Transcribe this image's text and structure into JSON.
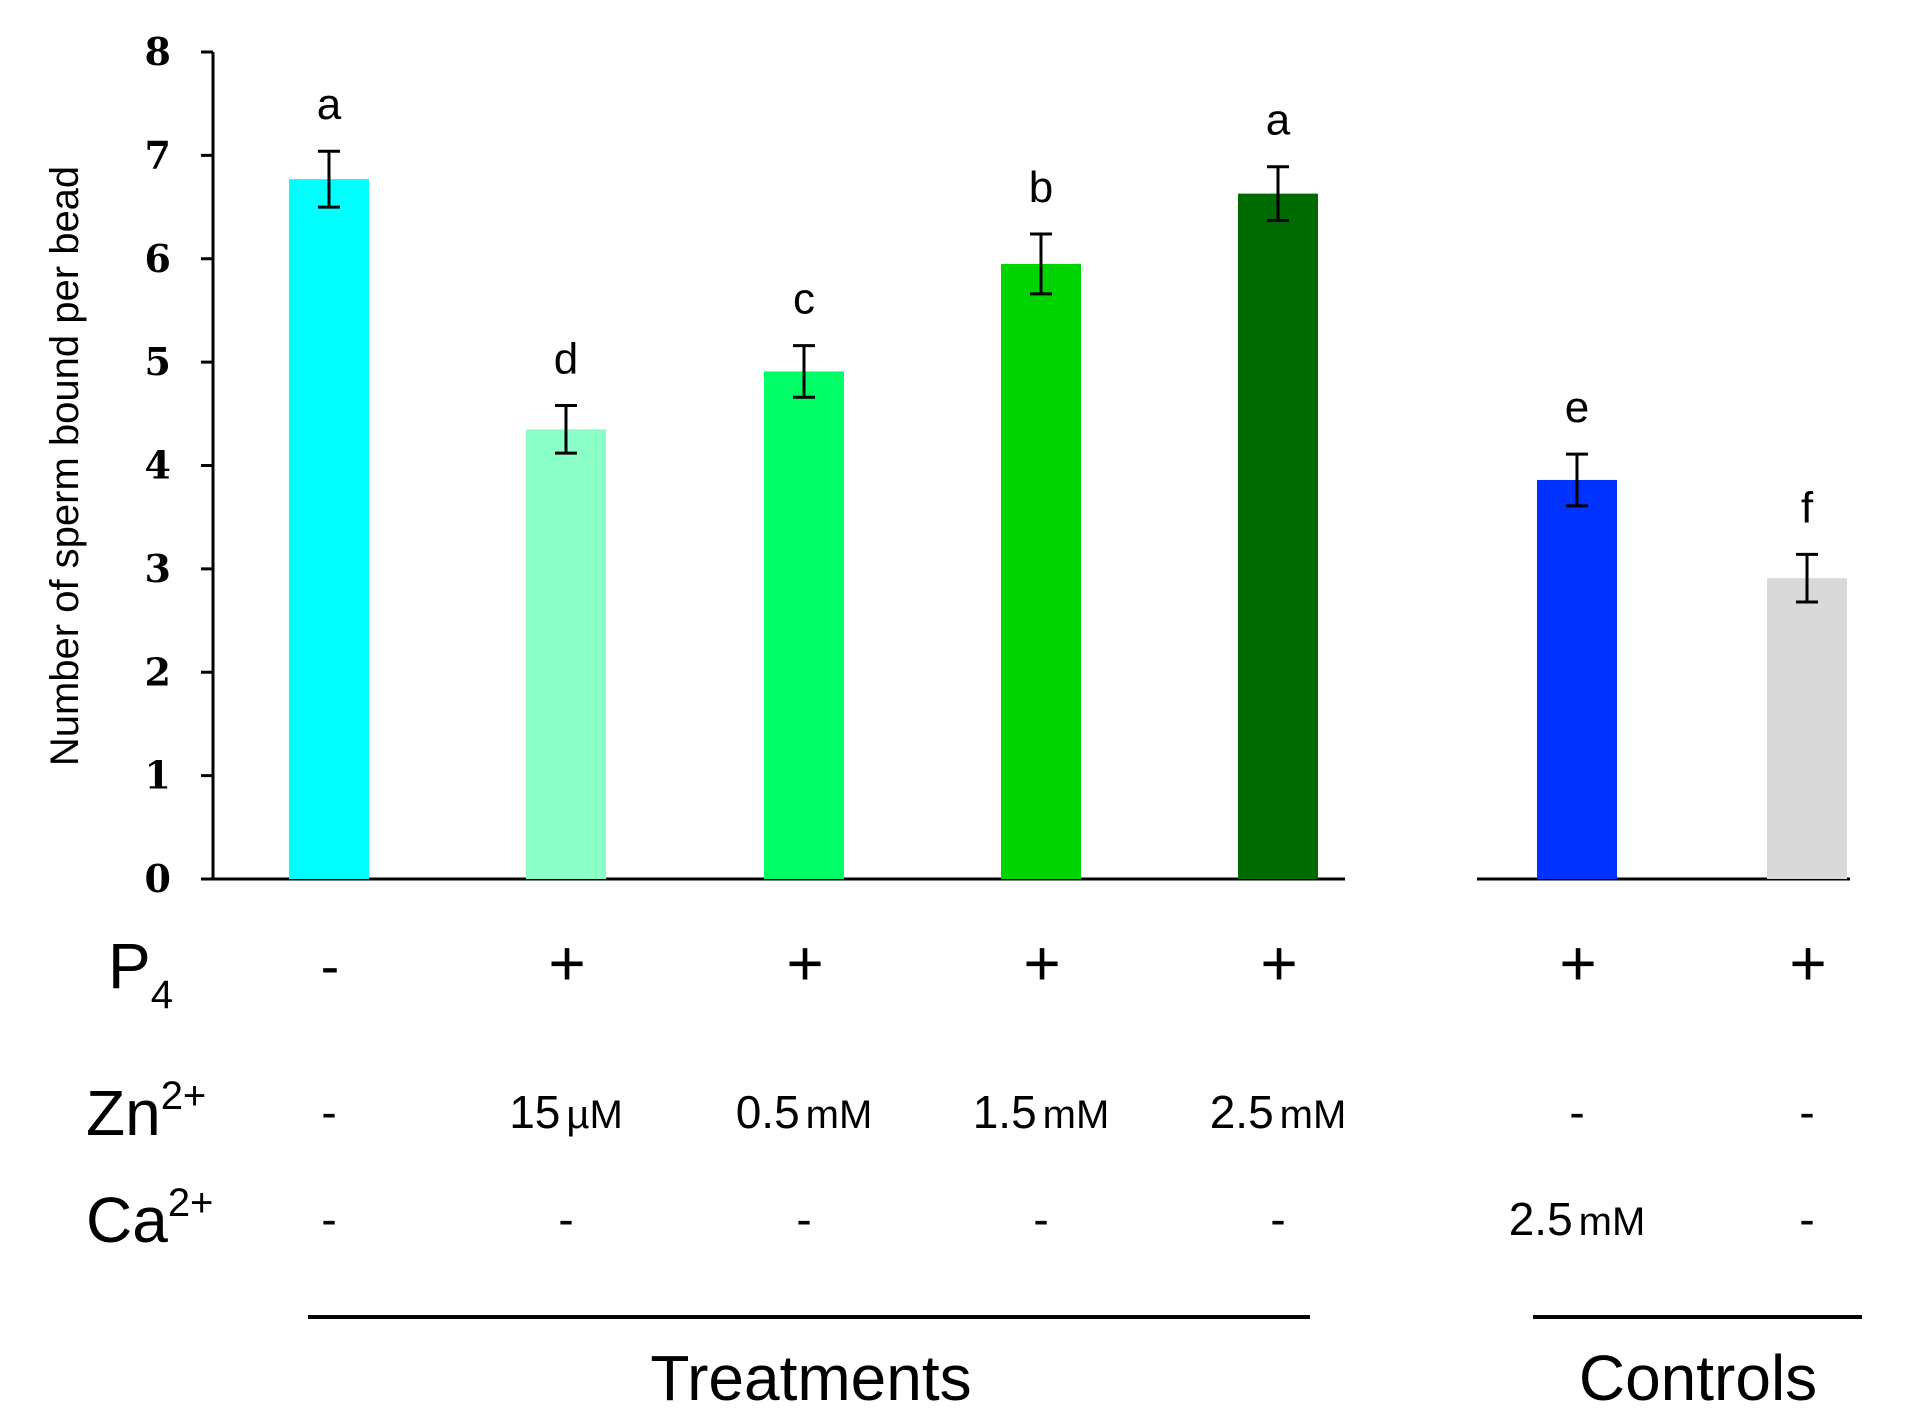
{
  "chart_data": {
    "type": "bar",
    "ylabel": "Number of sperm bound per bead",
    "ylim": [
      0,
      8
    ],
    "yticks": [
      "0",
      "1",
      "2",
      "3",
      "4",
      "5",
      "6",
      "7",
      "8"
    ],
    "bars": [
      {
        "value": 6.77,
        "error": 0.27,
        "letter": "a",
        "color": "#00ffff",
        "group": "treatments",
        "p4": "-",
        "zn_value": "-",
        "zn_unit": "",
        "ca_value": "-",
        "ca_unit": ""
      },
      {
        "value": 4.35,
        "error": 0.23,
        "letter": "d",
        "color": "#8affc7",
        "group": "treatments",
        "p4": "+",
        "zn_value": "15",
        "zn_unit": "µM",
        "ca_value": "-",
        "ca_unit": ""
      },
      {
        "value": 4.91,
        "error": 0.25,
        "letter": "c",
        "color": "#00ff66",
        "group": "treatments",
        "p4": "+",
        "zn_value": "0.5",
        "zn_unit": "mM",
        "ca_value": "-",
        "ca_unit": ""
      },
      {
        "value": 5.95,
        "error": 0.29,
        "letter": "b",
        "color": "#00d400",
        "group": "treatments",
        "p4": "+",
        "zn_value": "1.5",
        "zn_unit": "mM",
        "ca_value": "-",
        "ca_unit": ""
      },
      {
        "value": 6.63,
        "error": 0.26,
        "letter": "a",
        "color": "#006b00",
        "group": "treatments",
        "p4": "+",
        "zn_value": "2.5",
        "zn_unit": "mM",
        "ca_value": "-",
        "ca_unit": ""
      },
      {
        "value": 3.86,
        "error": 0.25,
        "letter": "e",
        "color": "#0033ff",
        "group": "controls",
        "p4": "+",
        "zn_value": "-",
        "zn_unit": "",
        "ca_value": "2.5",
        "ca_unit": "mM"
      },
      {
        "value": 2.91,
        "error": 0.23,
        "letter": "f",
        "color": "#d9d9d9",
        "group": "controls",
        "p4": "+",
        "zn_value": "-",
        "zn_unit": "",
        "ca_value": "-",
        "ca_unit": ""
      }
    ],
    "row_labels": {
      "p4": {
        "base": "P",
        "sub": "4"
      },
      "zn": {
        "base": "Zn",
        "sup": "2+"
      },
      "ca": {
        "base": "Ca",
        "sup": "2+"
      }
    },
    "groups": {
      "treatments": "Treatments",
      "controls": "Controls"
    }
  }
}
